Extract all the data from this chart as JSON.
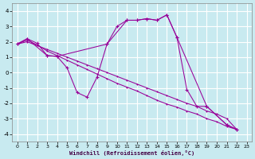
{
  "xlabel": "Windchill (Refroidissement éolien,°C)",
  "background_color": "#c8eaf0",
  "grid_color": "#ffffff",
  "line_color": "#990099",
  "xlim": [
    -0.5,
    23.5
  ],
  "ylim": [
    -4.5,
    4.5
  ],
  "xticks": [
    0,
    1,
    2,
    3,
    4,
    5,
    6,
    7,
    8,
    9,
    10,
    11,
    12,
    13,
    14,
    15,
    16,
    17,
    18,
    19,
    20,
    21,
    22,
    23
  ],
  "yticks": [
    -4,
    -3,
    -2,
    -1,
    0,
    1,
    2,
    3,
    4
  ],
  "line1_x": [
    0,
    1,
    2,
    3,
    4,
    5,
    6,
    7,
    8,
    9,
    10,
    11,
    12,
    13,
    14,
    15,
    16,
    17,
    18,
    19,
    21,
    22
  ],
  "line1_y": [
    1.85,
    2.2,
    1.9,
    1.1,
    1.05,
    0.3,
    -1.3,
    -1.6,
    -0.3,
    1.85,
    3.0,
    3.4,
    3.4,
    3.5,
    3.4,
    3.75,
    2.3,
    -1.1,
    -2.2,
    -2.2,
    -3.4,
    -3.7
  ],
  "line2_x": [
    0,
    1,
    3,
    4,
    9,
    11,
    12,
    13,
    14,
    15,
    16,
    19,
    21,
    22
  ],
  "line2_y": [
    1.85,
    2.2,
    1.1,
    1.05,
    1.85,
    3.4,
    3.4,
    3.5,
    3.4,
    3.75,
    2.3,
    -2.2,
    -3.4,
    -3.7
  ],
  "line3_x": [
    0,
    1,
    2,
    3,
    4,
    5,
    6,
    7,
    8,
    9,
    10,
    11,
    12,
    13,
    14,
    15,
    16,
    17,
    18,
    19,
    20,
    21,
    22
  ],
  "line3_y": [
    1.85,
    2.0,
    1.75,
    1.5,
    1.25,
    1.0,
    0.75,
    0.5,
    0.25,
    0.0,
    -0.25,
    -0.5,
    -0.75,
    -1.0,
    -1.25,
    -1.5,
    -1.75,
    -2.0,
    -2.2,
    -2.5,
    -2.7,
    -3.0,
    -3.7
  ],
  "line4_x": [
    0,
    1,
    2,
    3,
    4,
    5,
    6,
    7,
    8,
    9,
    10,
    11,
    12,
    13,
    14,
    15,
    16,
    17,
    18,
    19,
    20,
    21,
    22
  ],
  "line4_y": [
    1.85,
    2.1,
    1.8,
    1.4,
    1.1,
    0.8,
    0.5,
    0.2,
    -0.1,
    -0.4,
    -0.7,
    -0.95,
    -1.2,
    -1.5,
    -1.8,
    -2.05,
    -2.25,
    -2.5,
    -2.7,
    -3.0,
    -3.2,
    -3.5,
    -3.7
  ]
}
